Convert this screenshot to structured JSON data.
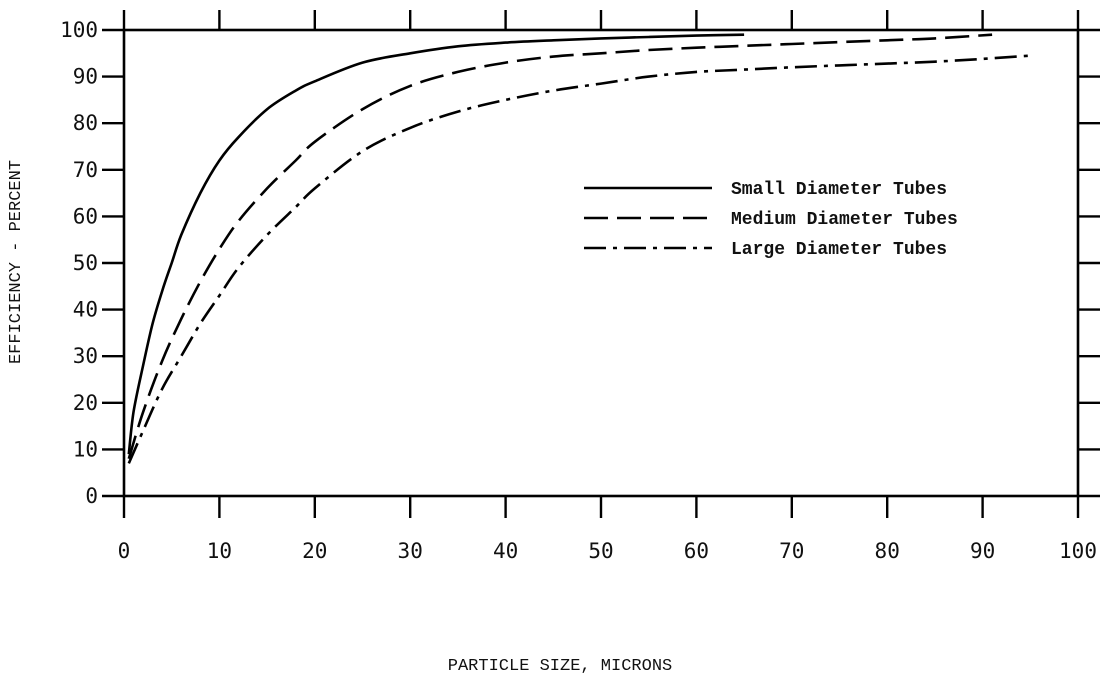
{
  "chart_data": {
    "type": "line",
    "title": "",
    "xlabel": "PARTICLE SIZE, MICRONS",
    "ylabel": "EFFICIENCY - PERCENT",
    "xlim": [
      0,
      100
    ],
    "ylim": [
      0,
      100
    ],
    "xticks": [
      "0",
      "10",
      "20",
      "30",
      "40",
      "50",
      "60",
      "70",
      "80",
      "90",
      "100"
    ],
    "yticks": [
      "0",
      "10",
      "20",
      "30",
      "40",
      "50",
      "60",
      "70",
      "80",
      "90",
      "100"
    ],
    "grid": false,
    "legend_position": "center-right",
    "series": [
      {
        "name": "Small Diameter Tubes",
        "line_style": "solid",
        "color": "#000000",
        "x": [
          0.5,
          1,
          2,
          3,
          4,
          5,
          6,
          8,
          10,
          12,
          15,
          18,
          20,
          25,
          30,
          35,
          40,
          45,
          50,
          55,
          60,
          65
        ],
        "y": [
          9,
          18,
          28,
          37,
          44,
          50,
          56,
          65,
          72,
          77,
          83,
          87,
          89,
          93,
          95,
          96.5,
          97.3,
          97.8,
          98.2,
          98.5,
          98.8,
          99
        ]
      },
      {
        "name": "Medium Diameter Tubes",
        "line_style": "dashed",
        "color": "#000000",
        "x": [
          0.5,
          2,
          4,
          6,
          8,
          10,
          12,
          15,
          18,
          20,
          25,
          30,
          35,
          40,
          45,
          50,
          55,
          60,
          65,
          70,
          75,
          80,
          85,
          91
        ],
        "y": [
          8,
          18,
          29,
          38,
          46,
          53,
          59,
          66,
          72,
          76,
          83,
          88,
          91,
          93,
          94.3,
          95,
          95.7,
          96.2,
          96.6,
          97,
          97.4,
          97.8,
          98.2,
          99
        ]
      },
      {
        "name": "Large Diameter Tubes",
        "line_style": "dash-dot",
        "color": "#000000",
        "x": [
          0.5,
          2,
          4,
          6,
          8,
          10,
          12,
          15,
          18,
          20,
          25,
          30,
          35,
          40,
          45,
          50,
          55,
          60,
          65,
          70,
          75,
          80,
          85,
          90,
          95
        ],
        "y": [
          7,
          14,
          23,
          30,
          37,
          43,
          49,
          56,
          62,
          66,
          74,
          79,
          82.5,
          85,
          87,
          88.5,
          90,
          91,
          91.5,
          92,
          92.4,
          92.8,
          93.2,
          93.8,
          94.5
        ]
      }
    ]
  }
}
